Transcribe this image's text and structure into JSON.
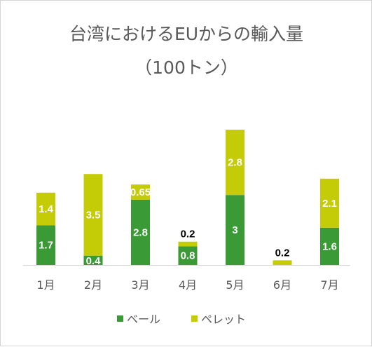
{
  "chart_data": {
    "type": "bar",
    "stacked": true,
    "title": "台湾におけるEUからの輸入量",
    "subtitle": "（100トン）",
    "categories": [
      "1月",
      "2月",
      "3月",
      "4月",
      "5月",
      "6月",
      "7月"
    ],
    "series": [
      {
        "name": "ベール",
        "color": "#3a9a35",
        "values": [
          1.7,
          0.4,
          2.8,
          0.8,
          3,
          0,
          1.6
        ]
      },
      {
        "name": "ペレット",
        "color": "#c4cc08",
        "values": [
          1.4,
          3.5,
          0.65,
          0.2,
          2.8,
          0.2,
          2.1
        ]
      }
    ],
    "data_labels": {
      "ベール": [
        "1.7",
        "0.4",
        "2.8",
        "0.8",
        "3",
        "",
        "1.6"
      ],
      "ペレット": [
        "1.4",
        "3.5",
        "0.65",
        "0.2",
        "2.8",
        "0.2",
        "2.1"
      ]
    },
    "ylim": [
      0,
      6
    ],
    "legend_position": "bottom",
    "grid": false,
    "axis_color": "#d9d9d9",
    "text_color": "#595959"
  }
}
